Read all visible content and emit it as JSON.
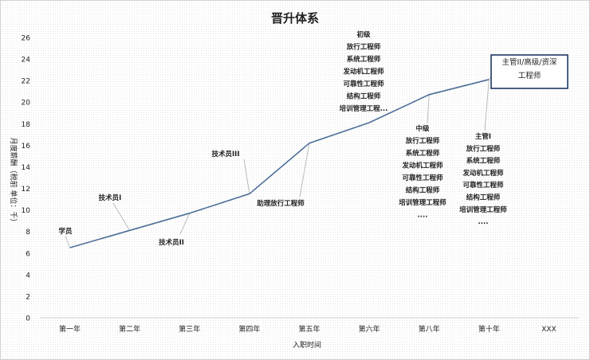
{
  "chart_data": {
    "type": "line",
    "title": "晋升体系",
    "xlabel": "入职时间",
    "ylabel": "月度薪酬（税前 单位：千）",
    "categories": [
      "第一年",
      "第二年",
      "第三年",
      "第四年",
      "第五年",
      "第六年",
      "第八年",
      "第十年",
      "XXX"
    ],
    "series": [
      {
        "values": [
          6.5,
          8.1,
          9.7,
          11.5,
          16.2,
          18.1,
          20.7,
          22.1,
          null
        ]
      }
    ],
    "ylim": [
      0,
      26
    ],
    "yticks": [
      0,
      2,
      4,
      6,
      8,
      10,
      12,
      14,
      16,
      18,
      20,
      22,
      24,
      26
    ],
    "grid": false,
    "line_color": "#4e6f98",
    "annotations": [
      {
        "category": "第一年",
        "lines": [
          "学员"
        ]
      },
      {
        "category": "第二年",
        "lines": [
          "技术员I"
        ]
      },
      {
        "category": "第三年",
        "lines": [
          "技术员II"
        ]
      },
      {
        "category": "第四年",
        "lines": [
          "技术员III"
        ]
      },
      {
        "category": "第五年",
        "lines": [
          "助理放行工程师"
        ]
      },
      {
        "category": "第六年",
        "lines": [
          "初级",
          "放行工程师",
          "系统工程师",
          "发动机工程师",
          "可靠性工程师",
          "结构工程师",
          "培训管理工程..."
        ]
      },
      {
        "category": "第八年",
        "lines": [
          "中级",
          "放行工程师",
          "系统工程师",
          "发动机工程师",
          "可靠性工程师",
          "结构工程师",
          "培训管理工程师",
          "...."
        ]
      },
      {
        "category": "第十年",
        "lines": [
          "主管I",
          "放行工程师",
          "系统工程师",
          "发动机工程师",
          "可靠性工程师",
          "结构工程师",
          "培训管理工程师",
          "...."
        ]
      },
      {
        "category": "第十年",
        "lines": [
          "主管II/高级/资深",
          "工程师"
        ],
        "boxed": true
      }
    ]
  }
}
